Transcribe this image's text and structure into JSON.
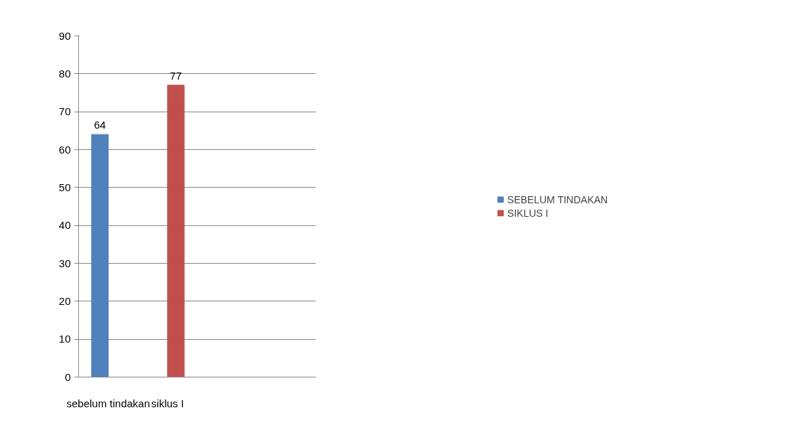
{
  "chart_data": {
    "type": "bar",
    "categories": [
      "sebelum tindakan",
      "siklus I",
      null,
      null
    ],
    "series": [
      {
        "name": "SEBELUM TINDAKAN",
        "color": "#4f81bd",
        "values": [
          64,
          null,
          null,
          null
        ]
      },
      {
        "name": "SIKLUS I",
        "color": "#c0504d",
        "values": [
          null,
          77,
          null,
          null
        ]
      }
    ],
    "ylim": [
      0,
      90
    ],
    "yticks": [
      0,
      10,
      20,
      30,
      40,
      50,
      60,
      70,
      80,
      90
    ],
    "grid": "y",
    "legend": "right",
    "data_labels": true
  }
}
